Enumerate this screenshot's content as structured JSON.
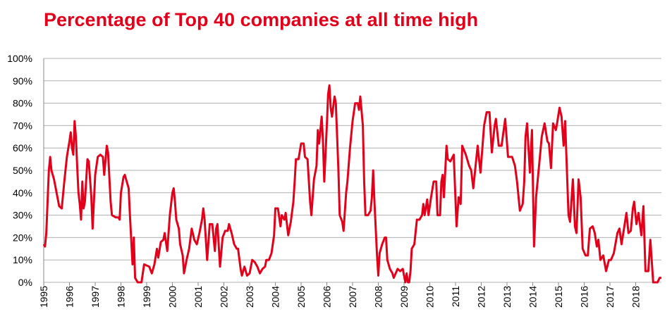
{
  "chart_data": {
    "type": "line",
    "title": "Percentage of Top 40 companies at all time high",
    "color": "#e2001a",
    "grid": true,
    "xlim": [
      1995,
      2019
    ],
    "xticks": [
      1995,
      1996,
      1997,
      1998,
      1999,
      2000,
      2001,
      2002,
      2003,
      2004,
      2005,
      2006,
      2007,
      2008,
      2009,
      2010,
      2011,
      2012,
      2013,
      2014,
      2015,
      2016,
      2017,
      2018
    ],
    "ylim": [
      0,
      100
    ],
    "yticks": [
      {
        "value": 0,
        "label": "0%"
      },
      {
        "value": 10,
        "label": "10%"
      },
      {
        "value": 20,
        "label": "20%"
      },
      {
        "value": 30,
        "label": "30%"
      },
      {
        "value": 40,
        "label": "40%"
      },
      {
        "value": 50,
        "label": "50%"
      },
      {
        "value": 60,
        "label": "60%"
      },
      {
        "value": 70,
        "label": "70%"
      },
      {
        "value": 80,
        "label": "80%"
      },
      {
        "value": 90,
        "label": "90%"
      },
      {
        "value": 100,
        "label": "100%"
      }
    ],
    "x": [
      1995.0,
      1995.05,
      1995.1,
      1995.2,
      1995.25,
      1995.3,
      1995.4,
      1995.5,
      1995.6,
      1995.7,
      1995.8,
      1995.9,
      1996.0,
      1996.05,
      1996.1,
      1996.15,
      1996.2,
      1996.25,
      1996.3,
      1996.35,
      1996.4,
      1996.45,
      1996.5,
      1996.55,
      1996.6,
      1996.7,
      1996.75,
      1996.85,
      1996.9,
      1997.0,
      1997.1,
      1997.2,
      1997.3,
      1997.35,
      1997.45,
      1997.5,
      1997.6,
      1997.65,
      1997.8,
      1997.9,
      1997.95,
      1998.0,
      1998.1,
      1998.15,
      1998.3,
      1998.35,
      1998.45,
      1998.5,
      1998.55,
      1998.65,
      1998.8,
      1998.9,
      1999.1,
      1999.2,
      1999.3,
      1999.4,
      1999.45,
      1999.55,
      1999.65,
      1999.7,
      1999.8,
      1999.9,
      2000.0,
      2000.05,
      2000.1,
      2000.15,
      2000.25,
      2000.3,
      2000.4,
      2000.45,
      2000.55,
      2000.65,
      2000.75,
      2000.85,
      2000.95,
      2001.05,
      2001.15,
      2001.2,
      2001.25,
      2001.35,
      2001.45,
      2001.55,
      2001.65,
      2001.7,
      2001.75,
      2001.85,
      2001.95,
      2002.05,
      2002.15,
      2002.2,
      2002.3,
      2002.4,
      2002.5,
      2002.55,
      2002.65,
      2002.7,
      2002.8,
      2002.9,
      2003.0,
      2003.1,
      2003.2,
      2003.3,
      2003.4,
      2003.5,
      2003.6,
      2003.65,
      2003.75,
      2003.85,
      2003.95,
      2004.0,
      2004.1,
      2004.2,
      2004.25,
      2004.35,
      2004.4,
      2004.5,
      2004.6,
      2004.7,
      2004.75,
      2004.8,
      2004.9,
      2005.0,
      2005.1,
      2005.15,
      2005.25,
      2005.35,
      2005.4,
      2005.5,
      2005.6,
      2005.65,
      2005.7,
      2005.8,
      2005.85,
      2005.9,
      2006.0,
      2006.05,
      2006.1,
      2006.15,
      2006.2,
      2006.3,
      2006.35,
      2006.45,
      2006.5,
      2006.6,
      2006.65,
      2006.75,
      2006.8,
      2006.9,
      2007.0,
      2007.1,
      2007.2,
      2007.25,
      2007.3,
      2007.4,
      2007.45,
      2007.5,
      2007.6,
      2007.7,
      2007.75,
      2007.8,
      2007.85,
      2007.95,
      2008.0,
      2008.05,
      2008.15,
      2008.25,
      2008.3,
      2008.35,
      2008.45,
      2008.55,
      2008.6,
      2008.75,
      2008.85,
      2008.95,
      2009.05,
      2009.1,
      2009.15,
      2009.2,
      2009.25,
      2009.3,
      2009.4,
      2009.5,
      2009.6,
      2009.7,
      2009.75,
      2009.8,
      2009.9,
      2009.95,
      2010.05,
      2010.15,
      2010.25,
      2010.3,
      2010.4,
      2010.45,
      2010.5,
      2010.55,
      2010.65,
      2010.7,
      2010.8,
      2010.93,
      2011.04,
      2011.12,
      2011.2,
      2011.26,
      2011.4,
      2011.53,
      2011.61,
      2011.69,
      2011.86,
      2011.97,
      2012.11,
      2012.21,
      2012.32,
      2012.41,
      2012.52,
      2012.57,
      2012.68,
      2012.79,
      2012.93,
      2013.04,
      2013.2,
      2013.31,
      2013.39,
      2013.5,
      2013.61,
      2013.67,
      2013.72,
      2013.78,
      2013.89,
      2013.97,
      2014.05,
      2014.13,
      2014.27,
      2014.35,
      2014.46,
      2014.57,
      2014.63,
      2014.71,
      2014.79,
      2014.9,
      2014.96,
      2015.04,
      2015.12,
      2015.2,
      2015.26,
      2015.39,
      2015.45,
      2015.56,
      2015.64,
      2015.7,
      2015.78,
      2015.86,
      2015.94,
      2016.05,
      2016.14,
      2016.22,
      2016.33,
      2016.41,
      2016.49,
      2016.55,
      2016.63,
      2016.74,
      2016.85,
      2016.96,
      2017.04,
      2017.15,
      2017.29,
      2017.37,
      2017.45,
      2017.56,
      2017.64,
      2017.72,
      2017.81,
      2017.89,
      2017.94,
      2018.03,
      2018.11,
      2018.22,
      2018.3,
      2018.38,
      2018.49,
      2018.57,
      2018.68,
      2018.85,
      2018.93,
      2019.0
    ],
    "values": [
      17,
      16,
      22,
      50,
      56,
      50,
      46,
      40,
      34,
      33,
      45,
      56,
      63,
      67,
      60,
      57,
      72,
      65,
      52,
      40,
      35,
      28,
      45,
      33,
      36,
      55,
      54,
      38,
      24,
      48,
      56,
      57,
      56,
      48,
      61,
      58,
      36,
      30,
      29,
      29,
      28,
      40,
      47,
      48,
      42,
      30,
      8,
      20,
      2,
      0,
      0,
      8,
      7,
      4,
      8,
      15,
      11,
      18,
      19,
      22,
      14,
      30,
      40,
      42,
      36,
      28,
      24,
      17,
      12,
      4,
      10,
      15,
      24,
      19,
      17,
      22,
      28,
      33,
      28,
      10,
      26,
      26,
      14,
      24,
      26,
      7,
      20,
      23,
      23,
      26,
      22,
      17,
      15,
      15,
      6,
      3,
      7,
      3,
      4,
      10,
      9,
      7,
      4,
      6,
      7,
      10,
      10,
      13,
      21,
      33,
      33,
      25,
      30,
      28,
      31,
      21,
      27,
      36,
      45,
      55,
      55,
      62,
      62,
      56,
      55,
      36,
      30,
      46,
      52,
      68,
      62,
      74,
      63,
      45,
      70,
      84,
      88,
      78,
      74,
      83,
      80,
      50,
      30,
      27,
      23,
      40,
      45,
      60,
      72,
      80,
      80,
      77,
      83,
      70,
      45,
      30,
      30,
      32,
      38,
      50,
      36,
      12,
      3,
      13,
      17,
      20,
      20,
      10,
      6,
      4,
      2,
      6,
      5,
      6,
      0,
      4,
      0,
      0,
      5,
      15,
      17,
      28,
      28,
      30,
      35,
      30,
      37,
      30,
      38,
      45,
      45,
      30,
      30,
      45,
      48,
      38,
      61,
      55,
      54,
      57,
      25,
      38,
      35,
      61,
      57,
      52,
      50,
      42,
      61,
      49,
      70,
      76,
      76,
      58,
      70,
      73,
      61,
      61,
      73,
      56,
      56,
      52,
      45,
      32,
      35,
      45,
      65,
      71,
      49,
      68,
      16,
      38,
      55,
      65,
      71,
      63,
      62,
      51,
      71,
      68,
      72,
      78,
      74,
      61,
      72,
      30,
      27,
      46,
      25,
      22,
      46,
      38,
      15,
      12,
      12,
      24,
      25,
      22,
      16,
      19,
      10,
      12,
      5,
      10,
      10,
      13,
      22,
      24,
      17,
      25,
      31,
      22,
      23,
      33,
      36,
      26,
      31,
      21,
      34,
      5,
      5,
      19,
      0,
      0,
      2,
      2
    ]
  }
}
